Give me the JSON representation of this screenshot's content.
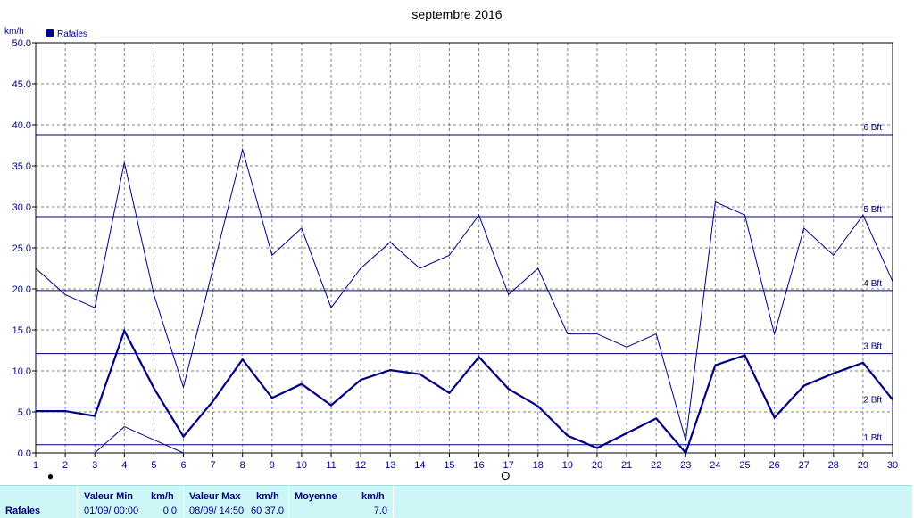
{
  "chart_data": {
    "type": "line",
    "title": "septembre 2016",
    "ylabel": "km/h",
    "legend": {
      "label": "Rafales",
      "color": "#000080",
      "position": "top-left"
    },
    "x": [
      1,
      2,
      3,
      4,
      5,
      6,
      7,
      8,
      9,
      10,
      11,
      12,
      13,
      14,
      15,
      16,
      17,
      18,
      19,
      20,
      21,
      22,
      23,
      24,
      25,
      26,
      27,
      28,
      29,
      30
    ],
    "xlim": [
      1,
      30
    ],
    "ylim": [
      0,
      50
    ],
    "yticks": [
      "0.0",
      "5.0",
      "10.0",
      "15.0",
      "20.0",
      "25.0",
      "30.0",
      "35.0",
      "40.0",
      "45.0",
      "50.0"
    ],
    "grid": true,
    "series": [
      {
        "values": [
          22.5,
          19.3,
          17.7,
          35.4,
          19.3,
          8.0,
          22.5,
          37.0,
          24.1,
          27.4,
          17.7,
          22.5,
          25.7,
          22.5,
          24.1,
          29.0,
          19.3,
          22.5,
          14.5,
          14.5,
          12.9,
          14.5,
          1.5,
          30.6,
          29.0,
          14.5,
          27.4,
          24.1,
          29.0,
          20.9
        ],
        "style": "thin"
      },
      {
        "values": [
          5.1,
          5.1,
          4.5,
          14.9,
          7.9,
          2.0,
          6.3,
          11.4,
          6.7,
          8.4,
          5.8,
          8.9,
          10.1,
          9.6,
          7.3,
          11.7,
          7.8,
          5.7,
          2.1,
          0.6,
          2.4,
          4.2,
          0.0,
          10.7,
          11.9,
          4.3,
          8.2,
          9.7,
          11.0,
          6.5
        ],
        "style": "thick"
      },
      {
        "x": [
          3,
          4,
          5,
          6
        ],
        "values": [
          0.0,
          3.2,
          1.6,
          0.0
        ],
        "style": "thin"
      }
    ],
    "reference_lines": [
      {
        "value": 1,
        "label": "1 Bft"
      },
      {
        "value": 5.6,
        "label": "2 Bft"
      },
      {
        "value": 12.1,
        "label": "3 Bft"
      },
      {
        "value": 19.8,
        "label": "4 Bft"
      },
      {
        "value": 28.8,
        "label": "5 Bft"
      },
      {
        "value": 38.8,
        "label": "6 Bft"
      }
    ],
    "moon_markers": [
      {
        "x": 1.5,
        "symbol": "●"
      },
      {
        "x": 16.9,
        "symbol": "O"
      }
    ]
  },
  "stats": {
    "row_label": "Rafales",
    "min_header": "Valeur Min",
    "unit": "km/h",
    "max_header": "Valeur Max",
    "mean_header": "Moyenne",
    "min_date": "01/09/  00:00",
    "min_value": "0.0",
    "max_date": "08/09/  14:50",
    "max_value": "37.0",
    "max_value_prefix": "60",
    "mean_value": "7.0"
  }
}
